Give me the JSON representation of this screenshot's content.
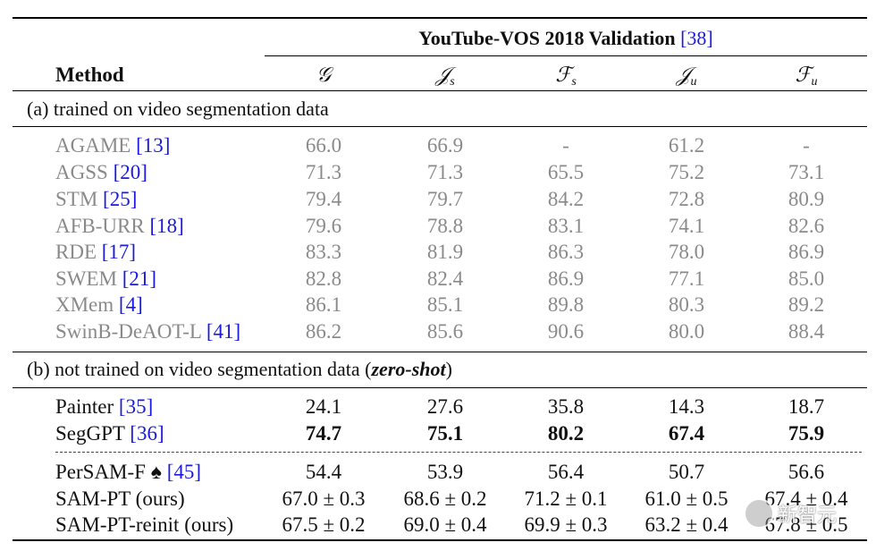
{
  "header": {
    "benchmark": "YouTube-VOS 2018 Validation",
    "benchmark_ref": "[38]",
    "method_label": "Method",
    "columns": [
      {
        "sym": "𝒢",
        "sub": ""
      },
      {
        "sym": "𝒥",
        "sub": "s"
      },
      {
        "sym": "ℱ",
        "sub": "s"
      },
      {
        "sym": "𝒥",
        "sub": "u"
      },
      {
        "sym": "ℱ",
        "sub": "u"
      }
    ]
  },
  "section_a": {
    "label": "(a) trained on video segmentation data",
    "rows": [
      {
        "method": "AGAME",
        "ref": "[13]",
        "values": [
          "66.0",
          "66.9",
          "-",
          "61.2",
          "-"
        ]
      },
      {
        "method": "AGSS",
        "ref": "[20]",
        "values": [
          "71.3",
          "71.3",
          "65.5",
          "75.2",
          "73.1"
        ]
      },
      {
        "method": "STM",
        "ref": "[25]",
        "values": [
          "79.4",
          "79.7",
          "84.2",
          "72.8",
          "80.9"
        ]
      },
      {
        "method": "AFB-URR",
        "ref": "[18]",
        "values": [
          "79.6",
          "78.8",
          "83.1",
          "74.1",
          "82.6"
        ]
      },
      {
        "method": "RDE",
        "ref": "[17]",
        "values": [
          "83.3",
          "81.9",
          "86.3",
          "78.0",
          "86.9"
        ]
      },
      {
        "method": "SWEM",
        "ref": "[21]",
        "values": [
          "82.8",
          "82.4",
          "86.9",
          "77.1",
          "85.0"
        ]
      },
      {
        "method": "XMem",
        "ref": "[4]",
        "values": [
          "86.1",
          "85.1",
          "89.8",
          "80.3",
          "89.2"
        ]
      },
      {
        "method": "SwinB-DeAOT-L",
        "ref": "[41]",
        "values": [
          "86.2",
          "85.6",
          "90.6",
          "80.0",
          "88.4"
        ]
      }
    ]
  },
  "section_b": {
    "label_prefix": "(b) not trained on video segmentation data (",
    "label_emph": "zero-shot",
    "label_suffix": ")",
    "rows_top": [
      {
        "method": "Painter",
        "ref": "[35]",
        "values": [
          "24.1",
          "27.6",
          "35.8",
          "14.3",
          "18.7"
        ],
        "bold": false
      },
      {
        "method": "SegGPT",
        "ref": "[36]",
        "values": [
          "74.7",
          "75.1",
          "80.2",
          "67.4",
          "75.9"
        ],
        "bold": true
      }
    ],
    "rows_bottom": [
      {
        "method": "PerSAM-F ♠",
        "ref": "[45]",
        "values": [
          "54.4",
          "53.9",
          "56.4",
          "50.7",
          "56.6"
        ]
      },
      {
        "method": "SAM-PT (ours)",
        "ref": "",
        "values": [
          "67.0 ± 0.3",
          "68.6 ± 0.2",
          "71.2 ± 0.1",
          "61.0 ± 0.5",
          "67.4 ± 0.4"
        ]
      },
      {
        "method": "SAM-PT-reinit (ours)",
        "ref": "",
        "values": [
          "67.5 ± 0.2",
          "69.0 ± 0.4",
          "69.9 ± 0.3",
          "63.2 ± 0.4",
          "67.8 ± 0.5"
        ]
      }
    ]
  },
  "watermark": {
    "text": "新智元"
  }
}
